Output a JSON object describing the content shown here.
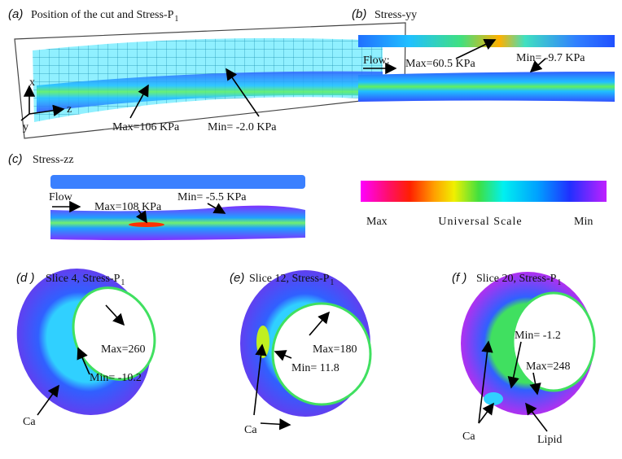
{
  "panels": [
    {
      "label": "(a)",
      "title": "Position of the cut and Stress-P",
      "title_sub": "1",
      "axes": [
        "x",
        "z",
        "y"
      ],
      "max": "Max=106 KPa",
      "min": "Min= -2.0 KPa"
    },
    {
      "label": "(b)",
      "title": "Stress-yy",
      "flow": "Flow:",
      "max": "Max=60.5 KPa",
      "min": "Min= -9.7 KPa"
    },
    {
      "label": "(c)",
      "title": "Stress-zz",
      "flow": "Flow",
      "max": "Max=108 KPa",
      "min": "Min= -5.5 KPa"
    },
    {
      "label": "(d )",
      "title": "Slice 4, Stress-P",
      "title_sub": "1",
      "max": "Max=260",
      "min": "Min= -10.2",
      "ca": "Ca"
    },
    {
      "label": "(e)",
      "title": "Slice 12, Stress-P",
      "title_sub": "1",
      "max": "Max=180",
      "min": "Min= 11.8",
      "ca": "Ca"
    },
    {
      "label": "(f )",
      "title": "Slice 20, Stress-P",
      "title_sub": "1",
      "min": "Min= -1.2",
      "max": "Max=248",
      "ca": "Ca",
      "lipid": "Lipid"
    }
  ],
  "scale": {
    "max": "Max",
    "title": "Universal Scale",
    "min": "Min"
  }
}
